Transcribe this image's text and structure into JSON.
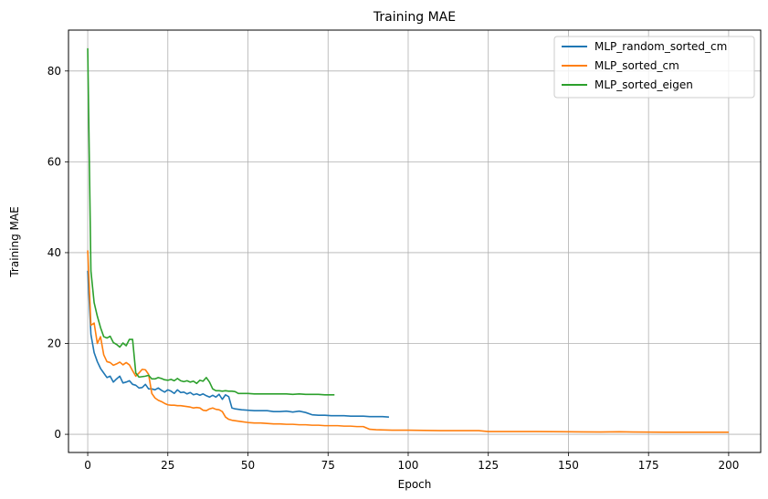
{
  "chart_data": {
    "type": "line",
    "title": "Training MAE",
    "xlabel": "Epoch",
    "ylabel": "Training MAE",
    "xlim": [
      -6,
      210
    ],
    "ylim": [
      -4,
      89
    ],
    "xticks": [
      0,
      25,
      50,
      75,
      100,
      125,
      150,
      175,
      200
    ],
    "yticks": [
      0,
      20,
      40,
      60,
      80
    ],
    "grid": true,
    "legend_position": "top-right",
    "series": [
      {
        "name": "MLP_random_sorted_cm",
        "color": "#1f77b4",
        "x": [
          0,
          1,
          2,
          3,
          4,
          5,
          6,
          7,
          8,
          9,
          10,
          11,
          12,
          13,
          14,
          15,
          16,
          17,
          18,
          19,
          20,
          21,
          22,
          23,
          24,
          25,
          26,
          27,
          28,
          29,
          30,
          31,
          32,
          33,
          34,
          35,
          36,
          37,
          38,
          39,
          40,
          41,
          42,
          43,
          44,
          45,
          46,
          47,
          48,
          50,
          52,
          54,
          56,
          58,
          60,
          62,
          64,
          66,
          68,
          70,
          72,
          74,
          76,
          78,
          80,
          82,
          84,
          86,
          88,
          90,
          92,
          94
        ],
        "y": [
          36,
          22,
          18,
          16,
          14.5,
          13.5,
          12.5,
          12.8,
          11.5,
          12.2,
          12.8,
          11.3,
          11.5,
          11.8,
          11,
          10.8,
          10.2,
          10.3,
          11,
          10,
          10,
          9.8,
          10.2,
          9.7,
          9.3,
          9.8,
          9.5,
          9,
          9.8,
          9.2,
          9.3,
          8.9,
          9.2,
          8.7,
          8.9,
          8.6,
          8.9,
          8.5,
          8.2,
          8.6,
          8.2,
          8.8,
          7.7,
          8.7,
          8.3,
          5.8,
          5.6,
          5.5,
          5.4,
          5.3,
          5.2,
          5.2,
          5.2,
          5,
          5,
          5.1,
          4.9,
          5.1,
          4.8,
          4.3,
          4.2,
          4.2,
          4.1,
          4.1,
          4.1,
          4,
          4,
          4,
          3.9,
          3.9,
          3.9,
          3.8
        ]
      },
      {
        "name": "MLP_sorted_cm",
        "color": "#ff7f0e",
        "x": [
          0,
          1,
          2,
          3,
          4,
          5,
          6,
          7,
          8,
          9,
          10,
          11,
          12,
          13,
          14,
          15,
          16,
          17,
          18,
          19,
          20,
          21,
          22,
          23,
          24,
          25,
          26,
          27,
          28,
          29,
          30,
          31,
          32,
          33,
          34,
          35,
          36,
          37,
          38,
          39,
          40,
          41,
          42,
          43,
          44,
          45,
          46,
          47,
          48,
          50,
          52,
          54,
          56,
          58,
          60,
          62,
          64,
          66,
          68,
          70,
          72,
          74,
          76,
          78,
          80,
          82,
          84,
          86,
          88,
          90,
          95,
          100,
          110,
          120,
          122,
          125,
          130,
          140,
          150,
          160,
          166,
          170,
          180,
          190,
          200
        ],
        "y": [
          40.5,
          24,
          24.5,
          20,
          21.5,
          17.5,
          16,
          15.8,
          15.2,
          15.5,
          15.9,
          15.3,
          15.8,
          15.3,
          14,
          12.8,
          13.5,
          14.3,
          14.2,
          13.2,
          9,
          8,
          7.5,
          7.2,
          6.8,
          6.5,
          6.4,
          6.4,
          6.3,
          6.3,
          6.2,
          6.1,
          6,
          5.8,
          5.9,
          5.8,
          5.3,
          5.2,
          5.6,
          5.8,
          5.5,
          5.4,
          5,
          3.8,
          3.3,
          3.1,
          3,
          2.9,
          2.8,
          2.6,
          2.5,
          2.5,
          2.4,
          2.3,
          2.3,
          2.2,
          2.2,
          2.1,
          2.1,
          2,
          2,
          1.9,
          1.9,
          1.9,
          1.8,
          1.8,
          1.7,
          1.7,
          1.1,
          1,
          0.9,
          0.9,
          0.8,
          0.8,
          0.8,
          0.6,
          0.6,
          0.6,
          0.55,
          0.5,
          0.55,
          0.5,
          0.45,
          0.45,
          0.45
        ]
      },
      {
        "name": "MLP_sorted_eigen",
        "color": "#2ca02c",
        "x": [
          0,
          1,
          2,
          3,
          4,
          5,
          6,
          7,
          8,
          9,
          10,
          11,
          12,
          13,
          14,
          15,
          16,
          17,
          18,
          19,
          20,
          21,
          22,
          23,
          24,
          25,
          26,
          27,
          28,
          29,
          30,
          31,
          32,
          33,
          34,
          35,
          36,
          37,
          38,
          39,
          40,
          41,
          42,
          43,
          44,
          45,
          46,
          47,
          48,
          50,
          52,
          54,
          56,
          58,
          60,
          62,
          64,
          66,
          68,
          70,
          72,
          74,
          76,
          77
        ],
        "y": [
          85,
          36,
          29,
          26,
          23.5,
          21.5,
          21.2,
          21.6,
          20.2,
          19.8,
          19.2,
          20.1,
          19.5,
          20.9,
          20.9,
          13.5,
          12.6,
          12.7,
          12.8,
          13,
          12.2,
          12.2,
          12.5,
          12.3,
          12,
          11.9,
          12.1,
          11.8,
          12.3,
          11.8,
          11.6,
          11.8,
          11.5,
          11.7,
          11.2,
          11.9,
          11.7,
          12.5,
          11.5,
          10,
          9.6,
          9.6,
          9.5,
          9.6,
          9.5,
          9.5,
          9.4,
          9,
          9,
          9,
          8.9,
          8.9,
          8.9,
          8.9,
          8.9,
          8.9,
          8.8,
          8.9,
          8.8,
          8.8,
          8.8,
          8.7,
          8.7,
          8.7
        ]
      }
    ]
  }
}
